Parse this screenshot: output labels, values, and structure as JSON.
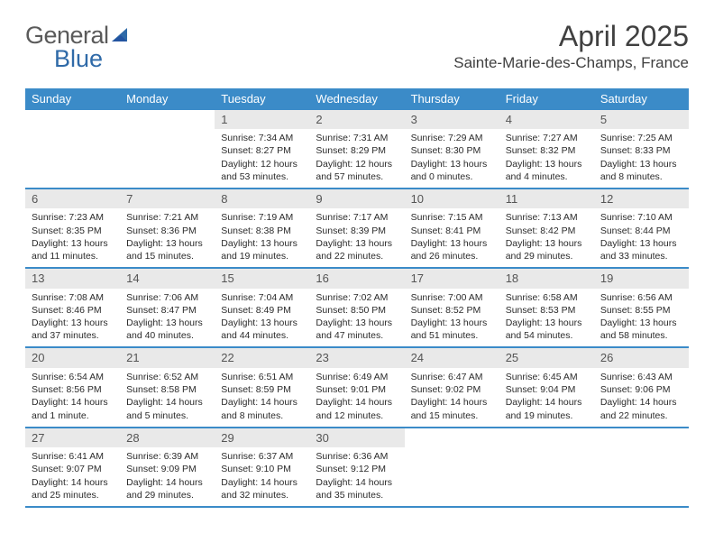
{
  "logo": {
    "part1": "General",
    "part2": "Blue"
  },
  "title": "April 2025",
  "location": "Sainte-Marie-des-Champs, France",
  "colors": {
    "header_bg": "#3b8bc8",
    "header_text": "#ffffff",
    "daynum_bg": "#e9e9e9",
    "daynum_text": "#555555",
    "body_text": "#2b2b2b",
    "rule": "#3b8bc8"
  },
  "day_names": [
    "Sunday",
    "Monday",
    "Tuesday",
    "Wednesday",
    "Thursday",
    "Friday",
    "Saturday"
  ],
  "weeks": [
    [
      null,
      null,
      {
        "n": "1",
        "sr": "Sunrise: 7:34 AM",
        "ss": "Sunset: 8:27 PM",
        "d1": "Daylight: 12 hours",
        "d2": "and 53 minutes."
      },
      {
        "n": "2",
        "sr": "Sunrise: 7:31 AM",
        "ss": "Sunset: 8:29 PM",
        "d1": "Daylight: 12 hours",
        "d2": "and 57 minutes."
      },
      {
        "n": "3",
        "sr": "Sunrise: 7:29 AM",
        "ss": "Sunset: 8:30 PM",
        "d1": "Daylight: 13 hours",
        "d2": "and 0 minutes."
      },
      {
        "n": "4",
        "sr": "Sunrise: 7:27 AM",
        "ss": "Sunset: 8:32 PM",
        "d1": "Daylight: 13 hours",
        "d2": "and 4 minutes."
      },
      {
        "n": "5",
        "sr": "Sunrise: 7:25 AM",
        "ss": "Sunset: 8:33 PM",
        "d1": "Daylight: 13 hours",
        "d2": "and 8 minutes."
      }
    ],
    [
      {
        "n": "6",
        "sr": "Sunrise: 7:23 AM",
        "ss": "Sunset: 8:35 PM",
        "d1": "Daylight: 13 hours",
        "d2": "and 11 minutes."
      },
      {
        "n": "7",
        "sr": "Sunrise: 7:21 AM",
        "ss": "Sunset: 8:36 PM",
        "d1": "Daylight: 13 hours",
        "d2": "and 15 minutes."
      },
      {
        "n": "8",
        "sr": "Sunrise: 7:19 AM",
        "ss": "Sunset: 8:38 PM",
        "d1": "Daylight: 13 hours",
        "d2": "and 19 minutes."
      },
      {
        "n": "9",
        "sr": "Sunrise: 7:17 AM",
        "ss": "Sunset: 8:39 PM",
        "d1": "Daylight: 13 hours",
        "d2": "and 22 minutes."
      },
      {
        "n": "10",
        "sr": "Sunrise: 7:15 AM",
        "ss": "Sunset: 8:41 PM",
        "d1": "Daylight: 13 hours",
        "d2": "and 26 minutes."
      },
      {
        "n": "11",
        "sr": "Sunrise: 7:13 AM",
        "ss": "Sunset: 8:42 PM",
        "d1": "Daylight: 13 hours",
        "d2": "and 29 minutes."
      },
      {
        "n": "12",
        "sr": "Sunrise: 7:10 AM",
        "ss": "Sunset: 8:44 PM",
        "d1": "Daylight: 13 hours",
        "d2": "and 33 minutes."
      }
    ],
    [
      {
        "n": "13",
        "sr": "Sunrise: 7:08 AM",
        "ss": "Sunset: 8:46 PM",
        "d1": "Daylight: 13 hours",
        "d2": "and 37 minutes."
      },
      {
        "n": "14",
        "sr": "Sunrise: 7:06 AM",
        "ss": "Sunset: 8:47 PM",
        "d1": "Daylight: 13 hours",
        "d2": "and 40 minutes."
      },
      {
        "n": "15",
        "sr": "Sunrise: 7:04 AM",
        "ss": "Sunset: 8:49 PM",
        "d1": "Daylight: 13 hours",
        "d2": "and 44 minutes."
      },
      {
        "n": "16",
        "sr": "Sunrise: 7:02 AM",
        "ss": "Sunset: 8:50 PM",
        "d1": "Daylight: 13 hours",
        "d2": "and 47 minutes."
      },
      {
        "n": "17",
        "sr": "Sunrise: 7:00 AM",
        "ss": "Sunset: 8:52 PM",
        "d1": "Daylight: 13 hours",
        "d2": "and 51 minutes."
      },
      {
        "n": "18",
        "sr": "Sunrise: 6:58 AM",
        "ss": "Sunset: 8:53 PM",
        "d1": "Daylight: 13 hours",
        "d2": "and 54 minutes."
      },
      {
        "n": "19",
        "sr": "Sunrise: 6:56 AM",
        "ss": "Sunset: 8:55 PM",
        "d1": "Daylight: 13 hours",
        "d2": "and 58 minutes."
      }
    ],
    [
      {
        "n": "20",
        "sr": "Sunrise: 6:54 AM",
        "ss": "Sunset: 8:56 PM",
        "d1": "Daylight: 14 hours",
        "d2": "and 1 minute."
      },
      {
        "n": "21",
        "sr": "Sunrise: 6:52 AM",
        "ss": "Sunset: 8:58 PM",
        "d1": "Daylight: 14 hours",
        "d2": "and 5 minutes."
      },
      {
        "n": "22",
        "sr": "Sunrise: 6:51 AM",
        "ss": "Sunset: 8:59 PM",
        "d1": "Daylight: 14 hours",
        "d2": "and 8 minutes."
      },
      {
        "n": "23",
        "sr": "Sunrise: 6:49 AM",
        "ss": "Sunset: 9:01 PM",
        "d1": "Daylight: 14 hours",
        "d2": "and 12 minutes."
      },
      {
        "n": "24",
        "sr": "Sunrise: 6:47 AM",
        "ss": "Sunset: 9:02 PM",
        "d1": "Daylight: 14 hours",
        "d2": "and 15 minutes."
      },
      {
        "n": "25",
        "sr": "Sunrise: 6:45 AM",
        "ss": "Sunset: 9:04 PM",
        "d1": "Daylight: 14 hours",
        "d2": "and 19 minutes."
      },
      {
        "n": "26",
        "sr": "Sunrise: 6:43 AM",
        "ss": "Sunset: 9:06 PM",
        "d1": "Daylight: 14 hours",
        "d2": "and 22 minutes."
      }
    ],
    [
      {
        "n": "27",
        "sr": "Sunrise: 6:41 AM",
        "ss": "Sunset: 9:07 PM",
        "d1": "Daylight: 14 hours",
        "d2": "and 25 minutes."
      },
      {
        "n": "28",
        "sr": "Sunrise: 6:39 AM",
        "ss": "Sunset: 9:09 PM",
        "d1": "Daylight: 14 hours",
        "d2": "and 29 minutes."
      },
      {
        "n": "29",
        "sr": "Sunrise: 6:37 AM",
        "ss": "Sunset: 9:10 PM",
        "d1": "Daylight: 14 hours",
        "d2": "and 32 minutes."
      },
      {
        "n": "30",
        "sr": "Sunrise: 6:36 AM",
        "ss": "Sunset: 9:12 PM",
        "d1": "Daylight: 14 hours",
        "d2": "and 35 minutes."
      },
      null,
      null,
      null
    ]
  ]
}
